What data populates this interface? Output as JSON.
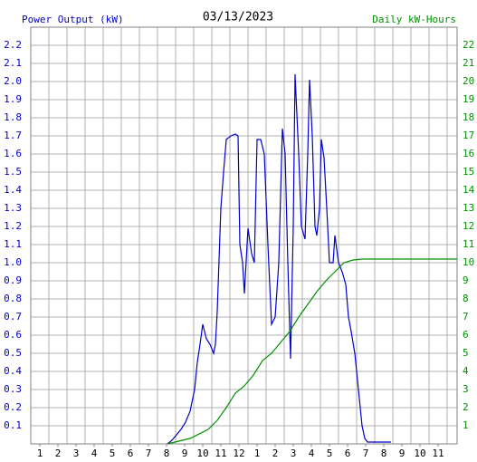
{
  "chart_data": {
    "type": "line",
    "title": "03/13/2023",
    "y_label": "Power Output (kW)",
    "y2_label": "Daily kW-Hours",
    "xlim": [
      0.5,
      24.05
    ],
    "xticks": [
      1,
      2,
      3,
      4,
      5,
      6,
      7,
      8,
      9,
      10,
      11,
      12,
      {
        "value": 13,
        "label": "1"
      },
      {
        "value": 14,
        "label": "2"
      },
      {
        "value": 15,
        "label": "3"
      },
      {
        "value": 16,
        "label": "4"
      },
      {
        "value": 17,
        "label": "5"
      },
      {
        "value": 18,
        "label": "6"
      },
      {
        "value": 19,
        "label": "7"
      },
      {
        "value": 20,
        "label": "8"
      },
      {
        "value": 21,
        "label": "9"
      },
      {
        "value": 22,
        "label": "10"
      },
      {
        "value": 23,
        "label": "11"
      }
    ],
    "xgrid": [
      0.5,
      1.5,
      2.5,
      3.5,
      4.5,
      5.5,
      6.5,
      7.5,
      8.5,
      9.5,
      10.5,
      11.5,
      12.5,
      13.5,
      14.5,
      15.5,
      16.5,
      17.5,
      18.5,
      19.5,
      20.5,
      21.5,
      22.5,
      23.5
    ],
    "ylim": [
      0,
      2.3
    ],
    "yticks": [
      0.1,
      0.2,
      0.3,
      0.4,
      0.5,
      0.6,
      0.7,
      0.8,
      0.9,
      {
        "value": 1,
        "label": "1.0"
      },
      1.1,
      1.2,
      1.3,
      1.4,
      1.5,
      1.6,
      1.7,
      1.8,
      1.9,
      {
        "value": 2,
        "label": "2.0"
      },
      2.1,
      2.2
    ],
    "y2lim": [
      0,
      23
    ],
    "y2ticks": [
      1,
      2,
      3,
      4,
      5,
      6,
      7,
      8,
      9,
      10,
      11,
      12,
      13,
      14,
      15,
      16,
      17,
      18,
      19,
      20,
      21,
      22
    ],
    "grid": true,
    "series": [
      {
        "color": "#0000cc",
        "x": [
          8.05,
          8.3,
          8.55,
          8.8,
          9.05,
          9.3,
          9.55,
          9.7,
          9.85,
          10.0,
          10.2,
          10.4,
          10.6,
          10.7,
          10.8,
          11.0,
          11.15,
          11.3,
          11.55,
          11.8,
          11.95,
          12.05,
          12.2,
          12.3,
          12.5,
          12.7,
          12.85,
          13.0,
          13.2,
          13.4,
          13.6,
          13.8,
          14.0,
          14.2,
          14.4,
          14.55,
          14.7,
          14.85,
          15.0,
          15.1,
          15.3,
          15.45,
          15.65,
          15.8,
          15.9,
          16.05,
          16.2,
          16.3,
          16.45,
          16.55,
          16.7,
          16.85,
          17.0,
          17.2,
          17.3,
          17.5,
          17.7,
          17.9,
          18.05,
          18.2,
          18.4,
          18.6,
          18.8,
          18.95,
          19.1,
          19.4,
          19.8,
          20.4
        ],
        "values": [
          0,
          0.02,
          0.05,
          0.08,
          0.12,
          0.18,
          0.3,
          0.45,
          0.55,
          0.66,
          0.58,
          0.55,
          0.5,
          0.55,
          0.73,
          1.3,
          1.5,
          1.68,
          1.7,
          1.71,
          1.7,
          1.1,
          1.0,
          0.83,
          1.19,
          1.05,
          1.0,
          1.68,
          1.68,
          1.6,
          1.1,
          0.66,
          0.7,
          1.0,
          1.74,
          1.6,
          1.0,
          0.47,
          1.2,
          2.04,
          1.6,
          1.2,
          1.13,
          1.6,
          2.01,
          1.7,
          1.2,
          1.15,
          1.3,
          1.68,
          1.58,
          1.3,
          1.0,
          1.0,
          1.15,
          1.0,
          0.95,
          0.88,
          0.7,
          0.62,
          0.5,
          0.3,
          0.1,
          0.03,
          0.01,
          0.01,
          0.01,
          0.01
        ]
      },
      {
        "color": "#009000",
        "axis": "y2",
        "x": [
          8.05,
          9.3,
          10.3,
          10.8,
          11.3,
          11.8,
          12.3,
          12.8,
          13.3,
          13.8,
          14.3,
          14.8,
          15.3,
          15.8,
          16.3,
          16.8,
          17.3,
          17.8,
          18.3,
          18.8,
          24.05
        ],
        "values": [
          0,
          0.3,
          0.8,
          1.3,
          2.0,
          2.8,
          3.2,
          3.8,
          4.6,
          5.0,
          5.6,
          6.2,
          7.0,
          7.7,
          8.4,
          9.0,
          9.5,
          10.0,
          10.15,
          10.2,
          10.2
        ]
      }
    ]
  }
}
